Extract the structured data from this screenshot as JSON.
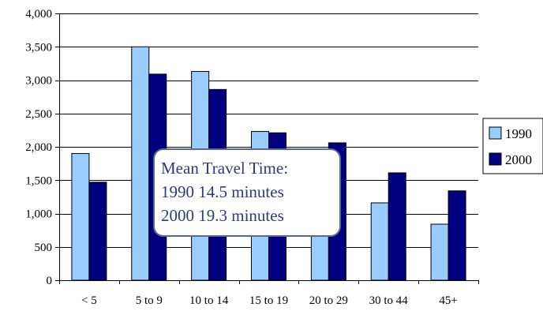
{
  "chart_data": {
    "type": "bar",
    "categories": [
      "< 5",
      "5 to 9",
      "10 to 14",
      "15 to 19",
      "20 to 29",
      "30 to 44",
      "45+"
    ],
    "series": [
      {
        "name": "1990",
        "values": [
          1900,
          3500,
          3130,
          2230,
          1650,
          1160,
          840
        ],
        "color": "#99ccff"
      },
      {
        "name": "2000",
        "values": [
          1470,
          3090,
          2860,
          2210,
          2060,
          1610,
          1340
        ],
        "color": "#000080"
      }
    ],
    "ylim": [
      0,
      4000
    ],
    "yticks": [
      0,
      500,
      1000,
      1500,
      2000,
      2500,
      3000,
      3500,
      4000
    ],
    "ytick_labels": [
      "0",
      "500",
      "1,000",
      "1,500",
      "2,000",
      "2,500",
      "3,000",
      "3,500",
      "4,000"
    ],
    "grid": true,
    "legend_position": "right",
    "annotation": {
      "line1": "Mean Travel Time:",
      "line2": "1990  14.5 minutes",
      "line3": "2000  19.3 minutes"
    }
  }
}
